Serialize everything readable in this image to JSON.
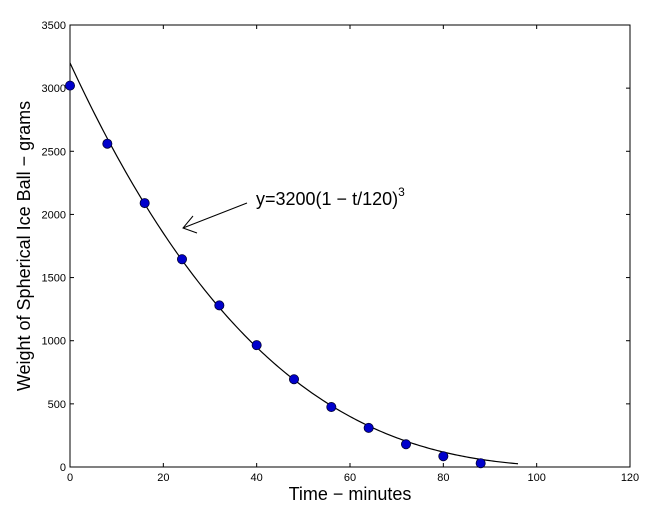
{
  "chart_data": {
    "type": "scatter",
    "title": "",
    "xlabel": "Time − minutes",
    "ylabel": "Weight of Spherical Ice Ball − grams",
    "xlim": [
      0,
      120
    ],
    "ylim": [
      0,
      3500
    ],
    "xticks": [
      0,
      20,
      40,
      60,
      80,
      100,
      120
    ],
    "yticks": [
      0,
      500,
      1000,
      1500,
      2000,
      2500,
      3000,
      3500
    ],
    "grid": false,
    "legend": "none",
    "series": [
      {
        "kind": "markers",
        "color": "#0000cc",
        "x": [
          0,
          8,
          16,
          24,
          32,
          40,
          48,
          56,
          64,
          72,
          80,
          88
        ],
        "y": [
          3020,
          2560,
          2090,
          1645,
          1280,
          965,
          695,
          475,
          310,
          180,
          85,
          30
        ]
      },
      {
        "kind": "curve",
        "color": "#000000",
        "formula": "y=3200(1 − t/120)^3",
        "x_range": [
          0,
          96
        ]
      }
    ],
    "annotation": {
      "text": "y=3200(1 − t/120)",
      "superscript": "3",
      "points_to": {
        "x": 23,
        "y": 1890
      }
    }
  }
}
